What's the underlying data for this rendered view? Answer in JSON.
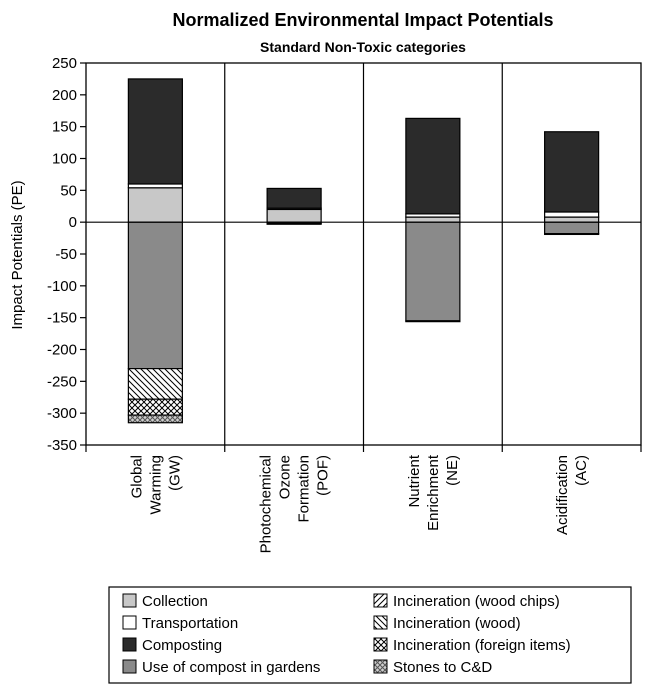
{
  "chart_data": {
    "type": "bar",
    "stacked": true,
    "title": "Normalized Environmental Impact Potentials",
    "subtitle": "Standard Non-Toxic categories",
    "ylabel": "Impact Potentials (PE)",
    "xlabel": "",
    "ylim": [
      -350,
      250
    ],
    "yticks": [
      250,
      200,
      150,
      100,
      50,
      0,
      -50,
      -100,
      -150,
      -200,
      -250,
      -300,
      -350
    ],
    "categories": [
      [
        "Global",
        "Warming",
        "(GW)"
      ],
      [
        "Photochemical",
        "Ozone",
        "Formation",
        "(POF)"
      ],
      [
        "Nutrient",
        "Enrichment",
        "(NE)"
      ],
      [
        "Acidification",
        "(AC)"
      ]
    ],
    "series": [
      {
        "name": "Collection",
        "pattern": "light-gray",
        "values": [
          54,
          20,
          8,
          8
        ]
      },
      {
        "name": "Transportation",
        "pattern": "white",
        "values": [
          6,
          2,
          5,
          8
        ]
      },
      {
        "name": "Composting",
        "pattern": "dark",
        "values": [
          165,
          31,
          150,
          126
        ]
      },
      {
        "name": "Use of compost in gardens",
        "pattern": "mid-gray",
        "values": [
          -230,
          -2,
          -155,
          -18
        ]
      },
      {
        "name": "Incineration (wood chips)",
        "pattern": "hatch-fwd",
        "values": [
          0,
          0,
          0,
          0
        ]
      },
      {
        "name": "Incineration (wood)",
        "pattern": "hatch-back",
        "values": [
          -48,
          -1,
          -1,
          -1
        ]
      },
      {
        "name": "Incineration (foreign items)",
        "pattern": "crosshatch",
        "values": [
          -25,
          0,
          0,
          0
        ]
      },
      {
        "name": "Stones to C&D",
        "pattern": "diamond",
        "values": [
          -12,
          0,
          0,
          0
        ]
      }
    ],
    "legend": {
      "position": "bottom",
      "columns": [
        [
          "Collection",
          "Transportation",
          "Composting",
          "Use of compost in gardens"
        ],
        [
          "Incineration (wood chips)",
          "Incineration (wood)",
          "Incineration (foreign items)",
          "Stones to C&D"
        ]
      ]
    },
    "grid": false
  }
}
